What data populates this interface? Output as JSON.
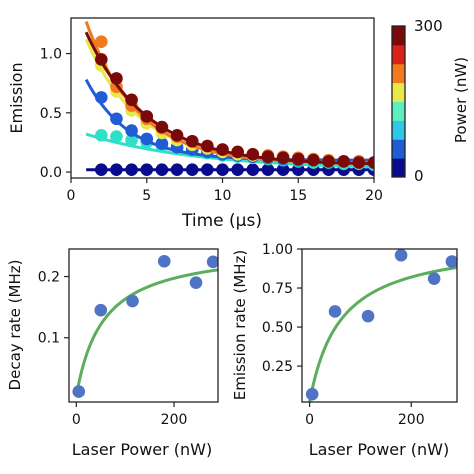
{
  "chart_data": [
    {
      "type": "scatter",
      "title": "",
      "xlabel": "Time (μs)",
      "ylabel": "Emission",
      "xlim": [
        0,
        20
      ],
      "ylim": [
        -0.05,
        1.3
      ],
      "xticks": [
        0,
        5,
        10,
        15,
        20
      ],
      "yticks": [
        0.0,
        0.5,
        1.0
      ],
      "grid": false,
      "colorbar": {
        "label": "Power (nW)",
        "min": 0,
        "max": 300,
        "tick_labels": [
          "0",
          "300"
        ],
        "colors": [
          "#0a0a8c",
          "#1f5cd6",
          "#2ec7e8",
          "#5bf0c0",
          "#e8e84a",
          "#f07a1e",
          "#d9221a",
          "#7a0a0a"
        ]
      },
      "series": [
        {
          "color": "#0a0a8c",
          "points": [
            [
              2,
              0.02
            ],
            [
              3,
              0.02
            ],
            [
              4,
              0.02
            ],
            [
              5,
              0.02
            ],
            [
              6,
              0.02
            ],
            [
              7,
              0.02
            ],
            [
              8,
              0.02
            ],
            [
              9,
              0.02
            ],
            [
              10,
              0.02
            ],
            [
              11,
              0.02
            ],
            [
              12,
              0.02
            ],
            [
              13,
              0.02
            ],
            [
              14,
              0.02
            ],
            [
              15,
              0.02
            ],
            [
              16,
              0.02
            ],
            [
              17,
              0.02
            ],
            [
              18,
              0.02
            ],
            [
              19,
              0.02
            ],
            [
              20,
              0.02
            ]
          ],
          "fit": {
            "x0": 1,
            "a": 0.0,
            "tau": 3.0,
            "c": 0.02
          }
        },
        {
          "color": "#2ee0c8",
          "points": [
            [
              2,
              0.31
            ],
            [
              3,
              0.3
            ],
            [
              4,
              0.27
            ],
            [
              5,
              0.25
            ],
            [
              6,
              0.22
            ],
            [
              7,
              0.2
            ],
            [
              8,
              0.18
            ],
            [
              9,
              0.16
            ],
            [
              10,
              0.14
            ],
            [
              11,
              0.13
            ],
            [
              12,
              0.12
            ],
            [
              13,
              0.11
            ],
            [
              14,
              0.1
            ],
            [
              15,
              0.09
            ],
            [
              16,
              0.08
            ],
            [
              17,
              0.08
            ],
            [
              18,
              0.07
            ],
            [
              19,
              0.07
            ],
            [
              20,
              0.06
            ]
          ],
          "fit": {
            "x0": 1,
            "a": 0.3,
            "tau": 7.5,
            "c": 0.02
          }
        },
        {
          "color": "#1f5cd6",
          "points": [
            [
              2,
              0.63
            ],
            [
              3,
              0.45
            ],
            [
              4,
              0.35
            ],
            [
              5,
              0.28
            ],
            [
              6,
              0.24
            ],
            [
              7,
              0.21
            ],
            [
              8,
              0.19
            ],
            [
              9,
              0.17
            ],
            [
              10,
              0.15
            ],
            [
              11,
              0.14
            ],
            [
              12,
              0.13
            ],
            [
              13,
              0.12
            ],
            [
              14,
              0.11
            ],
            [
              15,
              0.1
            ],
            [
              16,
              0.1
            ],
            [
              17,
              0.09
            ],
            [
              18,
              0.09
            ],
            [
              19,
              0.09
            ],
            [
              20,
              0.08
            ]
          ],
          "fit": {
            "x0": 1,
            "a": 0.68,
            "tau": 2.8,
            "c": 0.1
          }
        },
        {
          "color": "#e8e84a",
          "points": [
            [
              2,
              0.9
            ],
            [
              3,
              0.68
            ],
            [
              4,
              0.52
            ],
            [
              5,
              0.41
            ],
            [
              6,
              0.33
            ],
            [
              7,
              0.27
            ],
            [
              8,
              0.23
            ],
            [
              9,
              0.2
            ],
            [
              10,
              0.17
            ],
            [
              11,
              0.15
            ],
            [
              12,
              0.14
            ],
            [
              13,
              0.13
            ],
            [
              14,
              0.12
            ],
            [
              15,
              0.11
            ],
            [
              16,
              0.1
            ],
            [
              17,
              0.09
            ],
            [
              18,
              0.09
            ],
            [
              19,
              0.08
            ],
            [
              20,
              0.08
            ]
          ],
          "fit": {
            "x0": 1,
            "a": 1.05,
            "tau": 3.6,
            "c": 0.07
          }
        },
        {
          "color": "#f07a1e",
          "points": [
            [
              2,
              1.1
            ],
            [
              3,
              0.72
            ],
            [
              4,
              0.56
            ],
            [
              5,
              0.45
            ],
            [
              6,
              0.37
            ],
            [
              7,
              0.3
            ],
            [
              8,
              0.26
            ],
            [
              9,
              0.22
            ],
            [
              10,
              0.19
            ],
            [
              11,
              0.17
            ],
            [
              12,
              0.15
            ],
            [
              13,
              0.14
            ],
            [
              14,
              0.13
            ],
            [
              15,
              0.12
            ],
            [
              16,
              0.11
            ],
            [
              17,
              0.1
            ],
            [
              18,
              0.09
            ],
            [
              19,
              0.09
            ],
            [
              20,
              0.08
            ]
          ],
          "fit": {
            "x0": 1,
            "a": 1.2,
            "tau": 3.4,
            "c": 0.07
          }
        },
        {
          "color": "#7a0a0a",
          "points": [
            [
              2,
              0.95
            ],
            [
              3,
              0.79
            ],
            [
              4,
              0.61
            ],
            [
              5,
              0.47
            ],
            [
              6,
              0.38
            ],
            [
              7,
              0.31
            ],
            [
              8,
              0.26
            ],
            [
              9,
              0.22
            ],
            [
              10,
              0.19
            ],
            [
              11,
              0.17
            ],
            [
              12,
              0.15
            ],
            [
              13,
              0.13
            ],
            [
              14,
              0.12
            ],
            [
              15,
              0.11
            ],
            [
              16,
              0.1
            ],
            [
              17,
              0.09
            ],
            [
              18,
              0.09
            ],
            [
              19,
              0.08
            ],
            [
              20,
              0.08
            ]
          ],
          "fit": {
            "x0": 1,
            "a": 1.12,
            "tau": 4.0,
            "c": 0.06
          }
        }
      ]
    },
    {
      "type": "scatter",
      "title": "",
      "xlabel": "Laser Power (nW)",
      "ylabel": "Decay rate (MHz)",
      "xlim": [
        -15,
        290
      ],
      "ylim": [
        -0.005,
        0.245
      ],
      "xticks": [
        0,
        200
      ],
      "yticks": [
        0.1,
        0.2
      ],
      "grid": false,
      "marker_color": "#4f74c4",
      "fit_color": "#5cad5c",
      "points": [
        [
          5,
          0.012
        ],
        [
          50,
          0.145
        ],
        [
          115,
          0.16
        ],
        [
          180,
          0.225
        ],
        [
          245,
          0.19
        ],
        [
          280,
          0.224
        ]
      ],
      "fit": {
        "base": 0.005,
        "amp": 0.245,
        "k": 55
      }
    },
    {
      "type": "scatter",
      "title": "",
      "xlabel": "Laser Power (nW)",
      "ylabel": "Emission rate (MHz)",
      "xlim": [
        -15,
        290
      ],
      "ylim": [
        0.02,
        1.0
      ],
      "xticks": [
        0,
        200
      ],
      "yticks": [
        0.25,
        0.5,
        0.75,
        1.0
      ],
      "grid": false,
      "marker_color": "#4f74c4",
      "fit_color": "#5cad5c",
      "points": [
        [
          5,
          0.07
        ],
        [
          50,
          0.6
        ],
        [
          115,
          0.57
        ],
        [
          180,
          0.96
        ],
        [
          245,
          0.81
        ],
        [
          280,
          0.92
        ]
      ],
      "fit": {
        "base": 0.02,
        "amp": 1.04,
        "k": 60
      }
    }
  ]
}
